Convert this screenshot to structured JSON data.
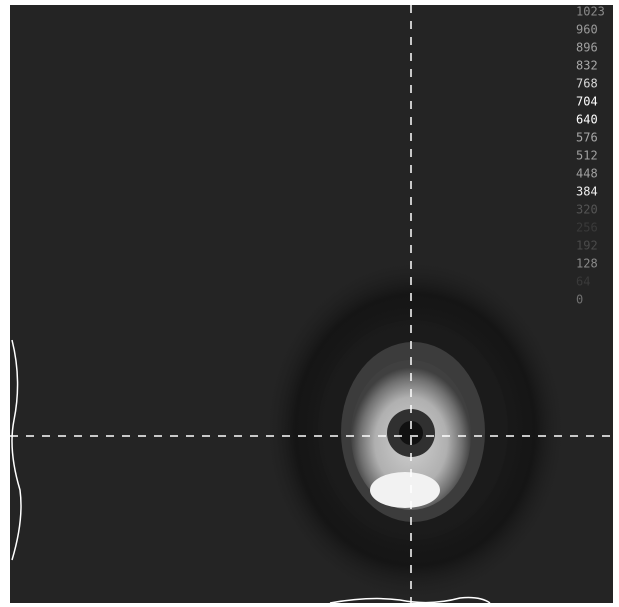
{
  "scale": {
    "labels": [
      "1023",
      "960",
      "896",
      "832",
      "768",
      "704",
      "640",
      "576",
      "512",
      "448",
      "384",
      "320",
      "256",
      "192",
      "128",
      "64",
      "0"
    ],
    "colors": [
      "#8a8a8a",
      "#9a9a9a",
      "#a0a0a0",
      "#a8a8a8",
      "#d8d8d8",
      "#ffffff",
      "#ffffff",
      "#a8a8a8",
      "#a0a0a0",
      "#a0a0a0",
      "#f0f0f0",
      "#555555",
      "#3a3a3a",
      "#4a4a4a",
      "#8a8a8a",
      "#3a3a3a",
      "#707070"
    ]
  }
}
